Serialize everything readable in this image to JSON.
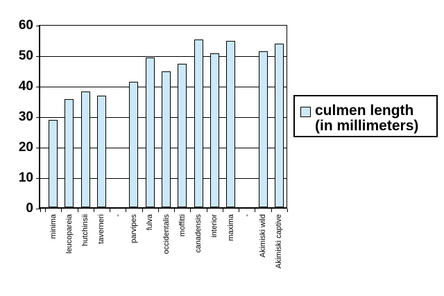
{
  "chart_data": {
    "type": "bar",
    "categories": [
      "minima",
      "leucopareia",
      "hutchinsii",
      "taverneri",
      "-",
      "parvipes",
      "fulva",
      "occidentalis",
      "moffitti",
      "canadensis",
      "interior",
      "maxima",
      "-",
      "Akimiski wild",
      "Akimiski captive"
    ],
    "values": [
      29,
      36,
      38.5,
      37,
      null,
      41.5,
      49.5,
      45,
      47.5,
      55.5,
      51,
      55,
      null,
      51.5,
      54
    ],
    "series_name": "culmen length (in millimeters)",
    "legend_lines": [
      "culmen length",
      "(in millimeters)"
    ],
    "title": "",
    "xlabel": "",
    "ylabel": "",
    "ylim": [
      0,
      60
    ],
    "yticks": [
      0,
      10,
      20,
      30,
      40,
      50,
      60
    ],
    "grid": true,
    "legend_position": "middle-right",
    "x_labels_rotated_degrees": 90,
    "colors": {
      "bar_fill": "#CCE8FA",
      "bar_border": "#000000",
      "gridline": "#000000",
      "axis": "#000000",
      "text": "#000000",
      "background": "#FFFFFF",
      "legend_border": "#000000"
    }
  }
}
